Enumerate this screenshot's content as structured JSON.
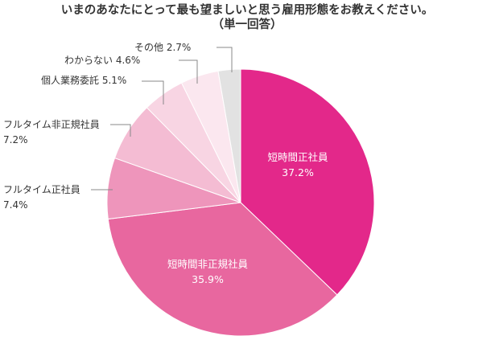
{
  "chart_data": {
    "type": "pie",
    "title": "いまのあなたにとって最も望ましいと思う雇用形態をお教えください。",
    "subtitle": "（単一回答）",
    "slices": [
      {
        "label": "短時間正社員",
        "value": 37.2,
        "value_text": "37.2%",
        "color": "#e3288a"
      },
      {
        "label": "短時間非正規社員",
        "value": 35.9,
        "value_text": "35.9%",
        "color": "#e8679f"
      },
      {
        "label": "フルタイム正社員",
        "value": 7.4,
        "value_text": "7.4%",
        "color": "#ee95bb"
      },
      {
        "label": "フルタイム非正規社員",
        "value": 7.2,
        "value_text": "7.2%",
        "color": "#f4bcd3"
      },
      {
        "label": "個人業務委託",
        "value": 5.1,
        "value_text": "5.1%",
        "color": "#f8d5e3"
      },
      {
        "label": "わからない",
        "value": 4.6,
        "value_text": "4.6%",
        "color": "#fbe7ef"
      },
      {
        "label": "その他",
        "value": 2.7,
        "value_text": "2.7%",
        "color": "#e2e2e2"
      }
    ],
    "start_angle_deg": 0,
    "direction": "clockwise"
  }
}
